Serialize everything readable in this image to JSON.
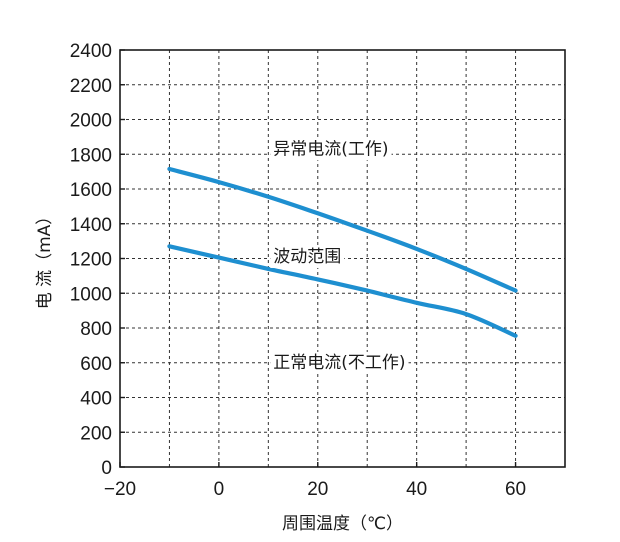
{
  "chart_data": {
    "type": "line",
    "xlabel": "周围温度（℃）",
    "ylabel": "电 流（mA）",
    "xlim": [
      -20,
      70
    ],
    "ylim": [
      0,
      2400
    ],
    "xticks": [
      -20,
      0,
      20,
      40,
      60
    ],
    "xtick_labels": [
      "−20",
      "0",
      "20",
      "40",
      "60"
    ],
    "yticks": [
      0,
      200,
      400,
      600,
      800,
      1000,
      1200,
      1400,
      1600,
      1800,
      2000,
      2200,
      2400
    ],
    "ytick_labels": [
      "0",
      "200",
      "400",
      "600",
      "800",
      "1000",
      "1200",
      "1400",
      "1600",
      "1800",
      "2000",
      "2200",
      "2400"
    ],
    "grid": true,
    "series": [
      {
        "name": "",
        "color": "#1e8fd0",
        "x": [
          -10,
          0,
          10,
          20,
          30,
          40,
          50,
          60
        ],
        "values": [
          1715,
          1640,
          1555,
          1460,
          1360,
          1255,
          1140,
          1015
        ]
      },
      {
        "name": "",
        "color": "#1e8fd0",
        "x": [
          -10,
          0,
          10,
          20,
          30,
          40,
          50,
          60
        ],
        "values": [
          1270,
          1205,
          1140,
          1080,
          1015,
          945,
          880,
          755
        ]
      }
    ],
    "annotations": [
      {
        "text": "异常电流(工作)",
        "x": 11,
        "y": 1800
      },
      {
        "text": "波动范围",
        "x": 11,
        "y": 1180
      },
      {
        "text": "正常电流(不工作)",
        "x": 11,
        "y": 570
      }
    ]
  }
}
